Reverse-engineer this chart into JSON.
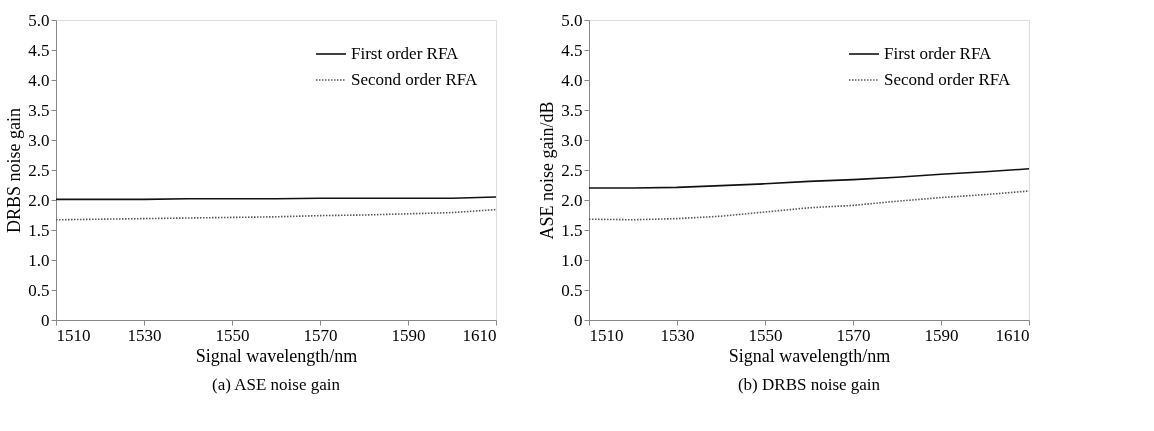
{
  "chart_data": [
    {
      "type": "line",
      "title": "(a) ASE noise gain",
      "xlabel": "Signal wavelength/nm",
      "ylabel": "DRBS noise gain",
      "x": [
        1510,
        1520,
        1530,
        1540,
        1550,
        1560,
        1570,
        1580,
        1590,
        1600,
        1610
      ],
      "xlim": [
        1510,
        1610
      ],
      "xticks": [
        1510,
        1530,
        1550,
        1570,
        1590,
        1610
      ],
      "ylim": [
        0,
        5
      ],
      "yticks": [
        0,
        {
          "value": 0.5,
          "label": "0.5"
        },
        {
          "value": 1,
          "label": "1.0"
        },
        {
          "value": 1.5,
          "label": "1.5"
        },
        {
          "value": 2,
          "label": "2.0"
        },
        {
          "value": 2.5,
          "label": "2.5"
        },
        {
          "value": 3,
          "label": "3.0"
        },
        {
          "value": 3.5,
          "label": "3.5"
        },
        {
          "value": 4,
          "label": "4.0"
        },
        {
          "value": 4.5,
          "label": "4.5"
        },
        {
          "value": 5,
          "label": "5.0"
        }
      ],
      "grid": false,
      "legend": "top right",
      "series": [
        {
          "name": "First order RFA",
          "color": "#111111",
          "line_style": "solid",
          "values": [
            2.01,
            2.01,
            2.01,
            2.02,
            2.02,
            2.02,
            2.03,
            2.03,
            2.03,
            2.03,
            2.05
          ]
        },
        {
          "name": "Second order RFA",
          "color": "#555555",
          "line_style": "dotted",
          "values": [
            1.67,
            1.68,
            1.69,
            1.7,
            1.71,
            1.72,
            1.74,
            1.75,
            1.77,
            1.79,
            1.84
          ]
        }
      ]
    },
    {
      "type": "line",
      "title": "(b) DRBS noise gain",
      "xlabel": "Signal wavelength/nm",
      "ylabel": "ASE noise gain/dB",
      "x": [
        1510,
        1520,
        1530,
        1540,
        1550,
        1560,
        1570,
        1580,
        1590,
        1600,
        1610
      ],
      "xlim": [
        1510,
        1610
      ],
      "xticks": [
        1510,
        1530,
        1550,
        1570,
        1590,
        1610
      ],
      "ylim": [
        0,
        5
      ],
      "yticks": [
        0,
        {
          "value": 0.5,
          "label": "0.5"
        },
        {
          "value": 1,
          "label": "1.0"
        },
        {
          "value": 1.5,
          "label": "1.5"
        },
        {
          "value": 2,
          "label": "2.0"
        },
        {
          "value": 2.5,
          "label": "2.5"
        },
        {
          "value": 3,
          "label": "3.0"
        },
        {
          "value": 3.5,
          "label": "3.5"
        },
        {
          "value": 4,
          "label": "4.0"
        },
        {
          "value": 4.5,
          "label": "4.5"
        },
        {
          "value": 5,
          "label": "5.0"
        }
      ],
      "grid": false,
      "legend": "top right",
      "series": [
        {
          "name": "First order RFA",
          "color": "#111111",
          "line_style": "solid",
          "values": [
            2.2,
            2.2,
            2.21,
            2.24,
            2.27,
            2.31,
            2.34,
            2.38,
            2.43,
            2.47,
            2.52
          ]
        },
        {
          "name": "Second order RFA",
          "color": "#555555",
          "line_style": "dotted",
          "values": [
            1.68,
            1.67,
            1.69,
            1.73,
            1.8,
            1.87,
            1.91,
            1.98,
            2.04,
            2.09,
            2.15
          ]
        }
      ]
    }
  ]
}
